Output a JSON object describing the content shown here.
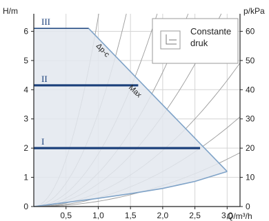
{
  "chart_data": {
    "type": "line",
    "left_axis_label": "H/m",
    "right_axis_label": "p/kPa",
    "x_axis_label": "Q/m³/h",
    "x_ticks": [
      "0,5",
      "1,0",
      "1,5",
      "2,0",
      "2,5",
      "3,0"
    ],
    "x_tick_values": [
      0.5,
      1.0,
      1.5,
      2.0,
      2.5,
      3.0
    ],
    "y_ticks": [
      "0",
      "1",
      "2",
      "3",
      "4",
      "5",
      "6"
    ],
    "y_tick_values": [
      0,
      1,
      2,
      3,
      4,
      5,
      6
    ],
    "y2_ticks": [
      "0",
      "10",
      "20",
      "30",
      "40",
      "50",
      "60"
    ],
    "xlim": [
      0,
      3.2
    ],
    "ylim": [
      0,
      6.6
    ],
    "grid": true,
    "operating_area": {
      "x": [
        0,
        0.85,
        3.0,
        3.0,
        0
      ],
      "y": [
        6.1,
        6.1,
        1.2,
        1.2,
        0
      ]
    },
    "lower_boundary": {
      "x": [
        0,
        0.5,
        1.0,
        1.5,
        2.0,
        2.5,
        3.0
      ],
      "y": [
        0,
        0.14,
        0.28,
        0.44,
        0.62,
        0.86,
        1.2
      ]
    },
    "series": [
      {
        "name": "I",
        "x": [
          0,
          2.58
        ],
        "y": [
          2.0,
          2.0
        ]
      },
      {
        "name": "II",
        "x": [
          0,
          1.62
        ],
        "y": [
          4.15,
          4.15
        ]
      },
      {
        "name": "III",
        "x": [
          0,
          0.85
        ],
        "y": [
          6.1,
          6.1
        ]
      }
    ],
    "system_curves_k": [
      6.5,
      3.2,
      1.8,
      1.15,
      0.78,
      0.48,
      0.3,
      0.18
    ],
    "annotations": [
      "Δp-c",
      "Max"
    ],
    "legend": {
      "position": "top-right",
      "text_line1": "Constante",
      "text_line2": "druk",
      "icon": "constant-pressure-icon"
    },
    "colors": {
      "area_fill": "#e3e7ef",
      "boundary": "#7fa3c8",
      "setting_line": "#1a3f7a",
      "system_curve": "#9a9a9a",
      "grid": "#d4d4d4",
      "axis": "#222222"
    }
  }
}
